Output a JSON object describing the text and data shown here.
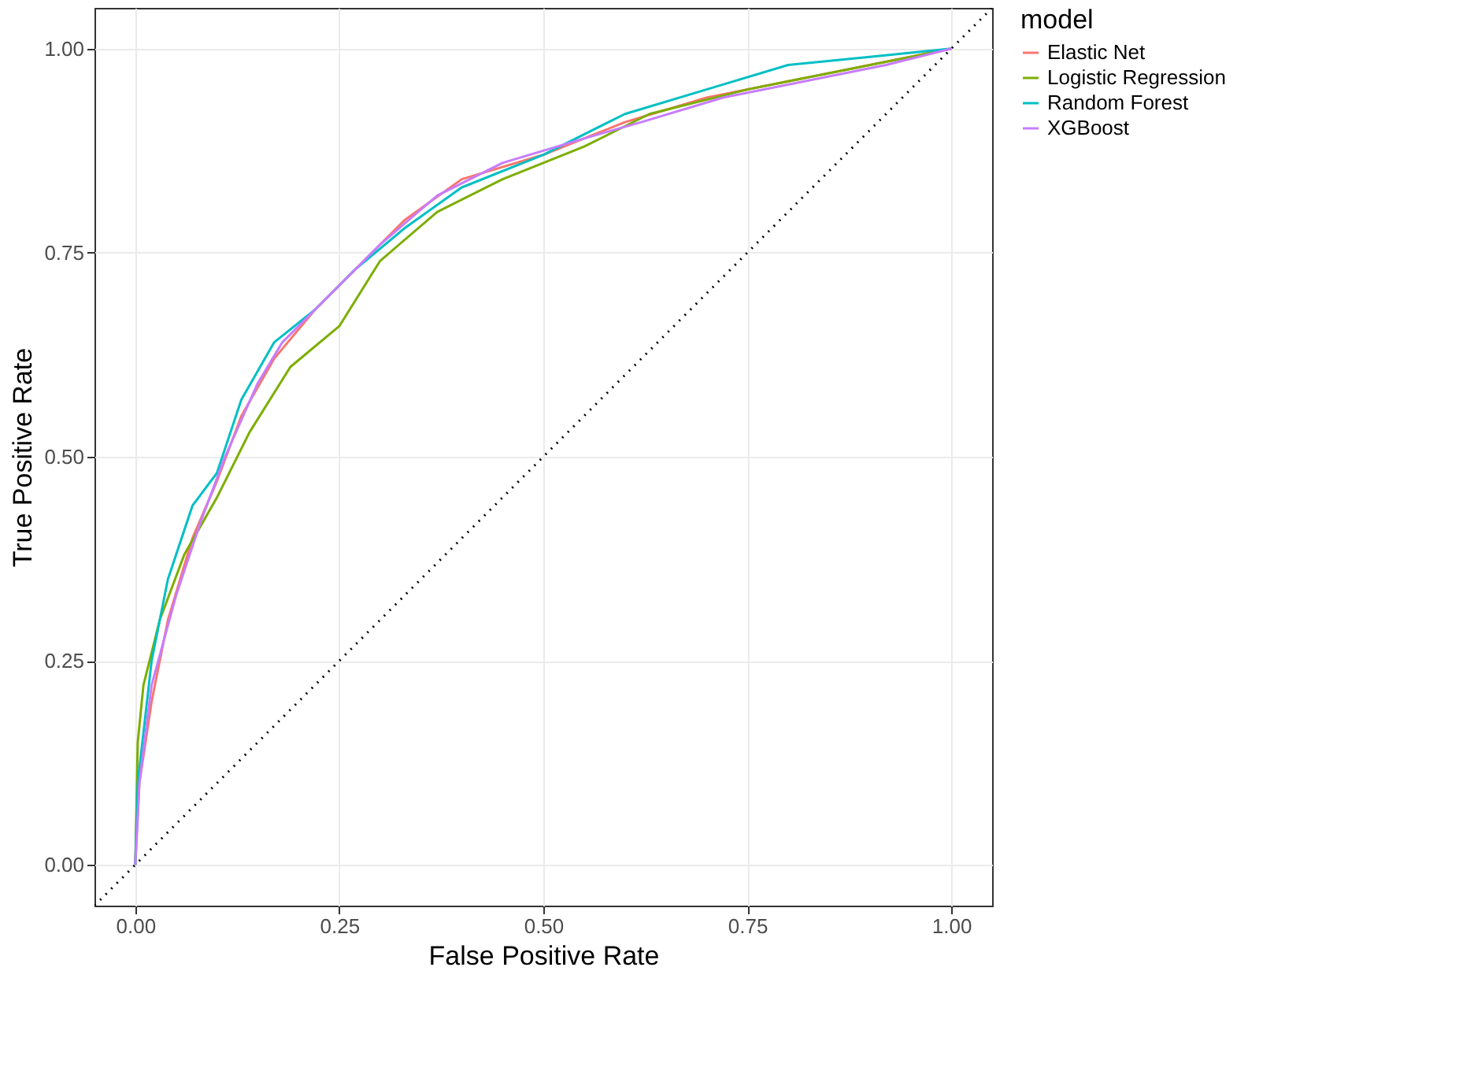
{
  "chart_data": {
    "type": "line",
    "xlabel": "False Positive Rate",
    "ylabel": "True Positive Rate",
    "legend_title": "model",
    "legend": "right",
    "grid": true,
    "marker": "none",
    "line_style": "solid",
    "xlim": [
      -0.05,
      1.05
    ],
    "ylim": [
      -0.05,
      1.05
    ],
    "xticks": [
      {
        "value": 0,
        "label": "0.00"
      },
      {
        "value": 0.25,
        "label": "0.25"
      },
      {
        "value": 0.5,
        "label": "0.50"
      },
      {
        "value": 0.75,
        "label": "0.75"
      },
      {
        "value": 1,
        "label": "1.00"
      }
    ],
    "yticks": [
      {
        "value": 0,
        "label": "0.00"
      },
      {
        "value": 0.25,
        "label": "0.25"
      },
      {
        "value": 0.5,
        "label": "0.50"
      },
      {
        "value": 0.75,
        "label": "0.75"
      },
      {
        "value": 1,
        "label": "1.00"
      }
    ],
    "series": [
      {
        "name": "Elastic Net",
        "color": "#f8766d",
        "x": [
          0,
          0.005,
          0.02,
          0.04,
          0.07,
          0.1,
          0.13,
          0.17,
          0.22,
          0.27,
          0.33,
          0.4,
          0.5,
          0.6,
          0.7,
          0.8,
          0.9,
          1
        ],
        "values": [
          0,
          0.1,
          0.2,
          0.3,
          0.4,
          0.47,
          0.55,
          0.62,
          0.68,
          0.73,
          0.79,
          0.84,
          0.87,
          0.91,
          0.94,
          0.96,
          0.98,
          1
        ]
      },
      {
        "name": "Logistic Regression",
        "color": "#7cae00",
        "x": [
          0,
          0.003,
          0.01,
          0.03,
          0.06,
          0.1,
          0.14,
          0.19,
          0.25,
          0.3,
          0.37,
          0.45,
          0.55,
          0.63,
          0.75,
          0.85,
          0.95,
          1
        ],
        "values": [
          0,
          0.15,
          0.22,
          0.3,
          0.38,
          0.45,
          0.53,
          0.61,
          0.66,
          0.74,
          0.8,
          0.84,
          0.88,
          0.92,
          0.95,
          0.97,
          0.99,
          1
        ]
      },
      {
        "name": "Random Forest",
        "color": "#00bfc4",
        "x": [
          0,
          0.003,
          0.02,
          0.04,
          0.07,
          0.1,
          0.13,
          0.17,
          0.22,
          0.27,
          0.33,
          0.4,
          0.5,
          0.6,
          0.7,
          0.8,
          0.9,
          1
        ],
        "values": [
          0,
          0.1,
          0.25,
          0.35,
          0.44,
          0.48,
          0.57,
          0.64,
          0.68,
          0.73,
          0.78,
          0.83,
          0.87,
          0.92,
          0.95,
          0.98,
          0.99,
          1
        ]
      },
      {
        "name": "XGBoost",
        "color": "#c77cff",
        "x": [
          0,
          0.005,
          0.02,
          0.05,
          0.08,
          0.11,
          0.15,
          0.18,
          0.24,
          0.3,
          0.37,
          0.45,
          0.55,
          0.62,
          0.72,
          0.82,
          0.92,
          1
        ],
        "values": [
          0,
          0.1,
          0.22,
          0.33,
          0.42,
          0.5,
          0.59,
          0.64,
          0.7,
          0.76,
          0.82,
          0.86,
          0.89,
          0.91,
          0.94,
          0.96,
          0.98,
          1
        ]
      },
      {
        "color": "#000000",
        "line_style": "dotted",
        "x": [
          -0.05,
          1.05
        ],
        "values": [
          -0.05,
          1.05
        ]
      }
    ]
  }
}
